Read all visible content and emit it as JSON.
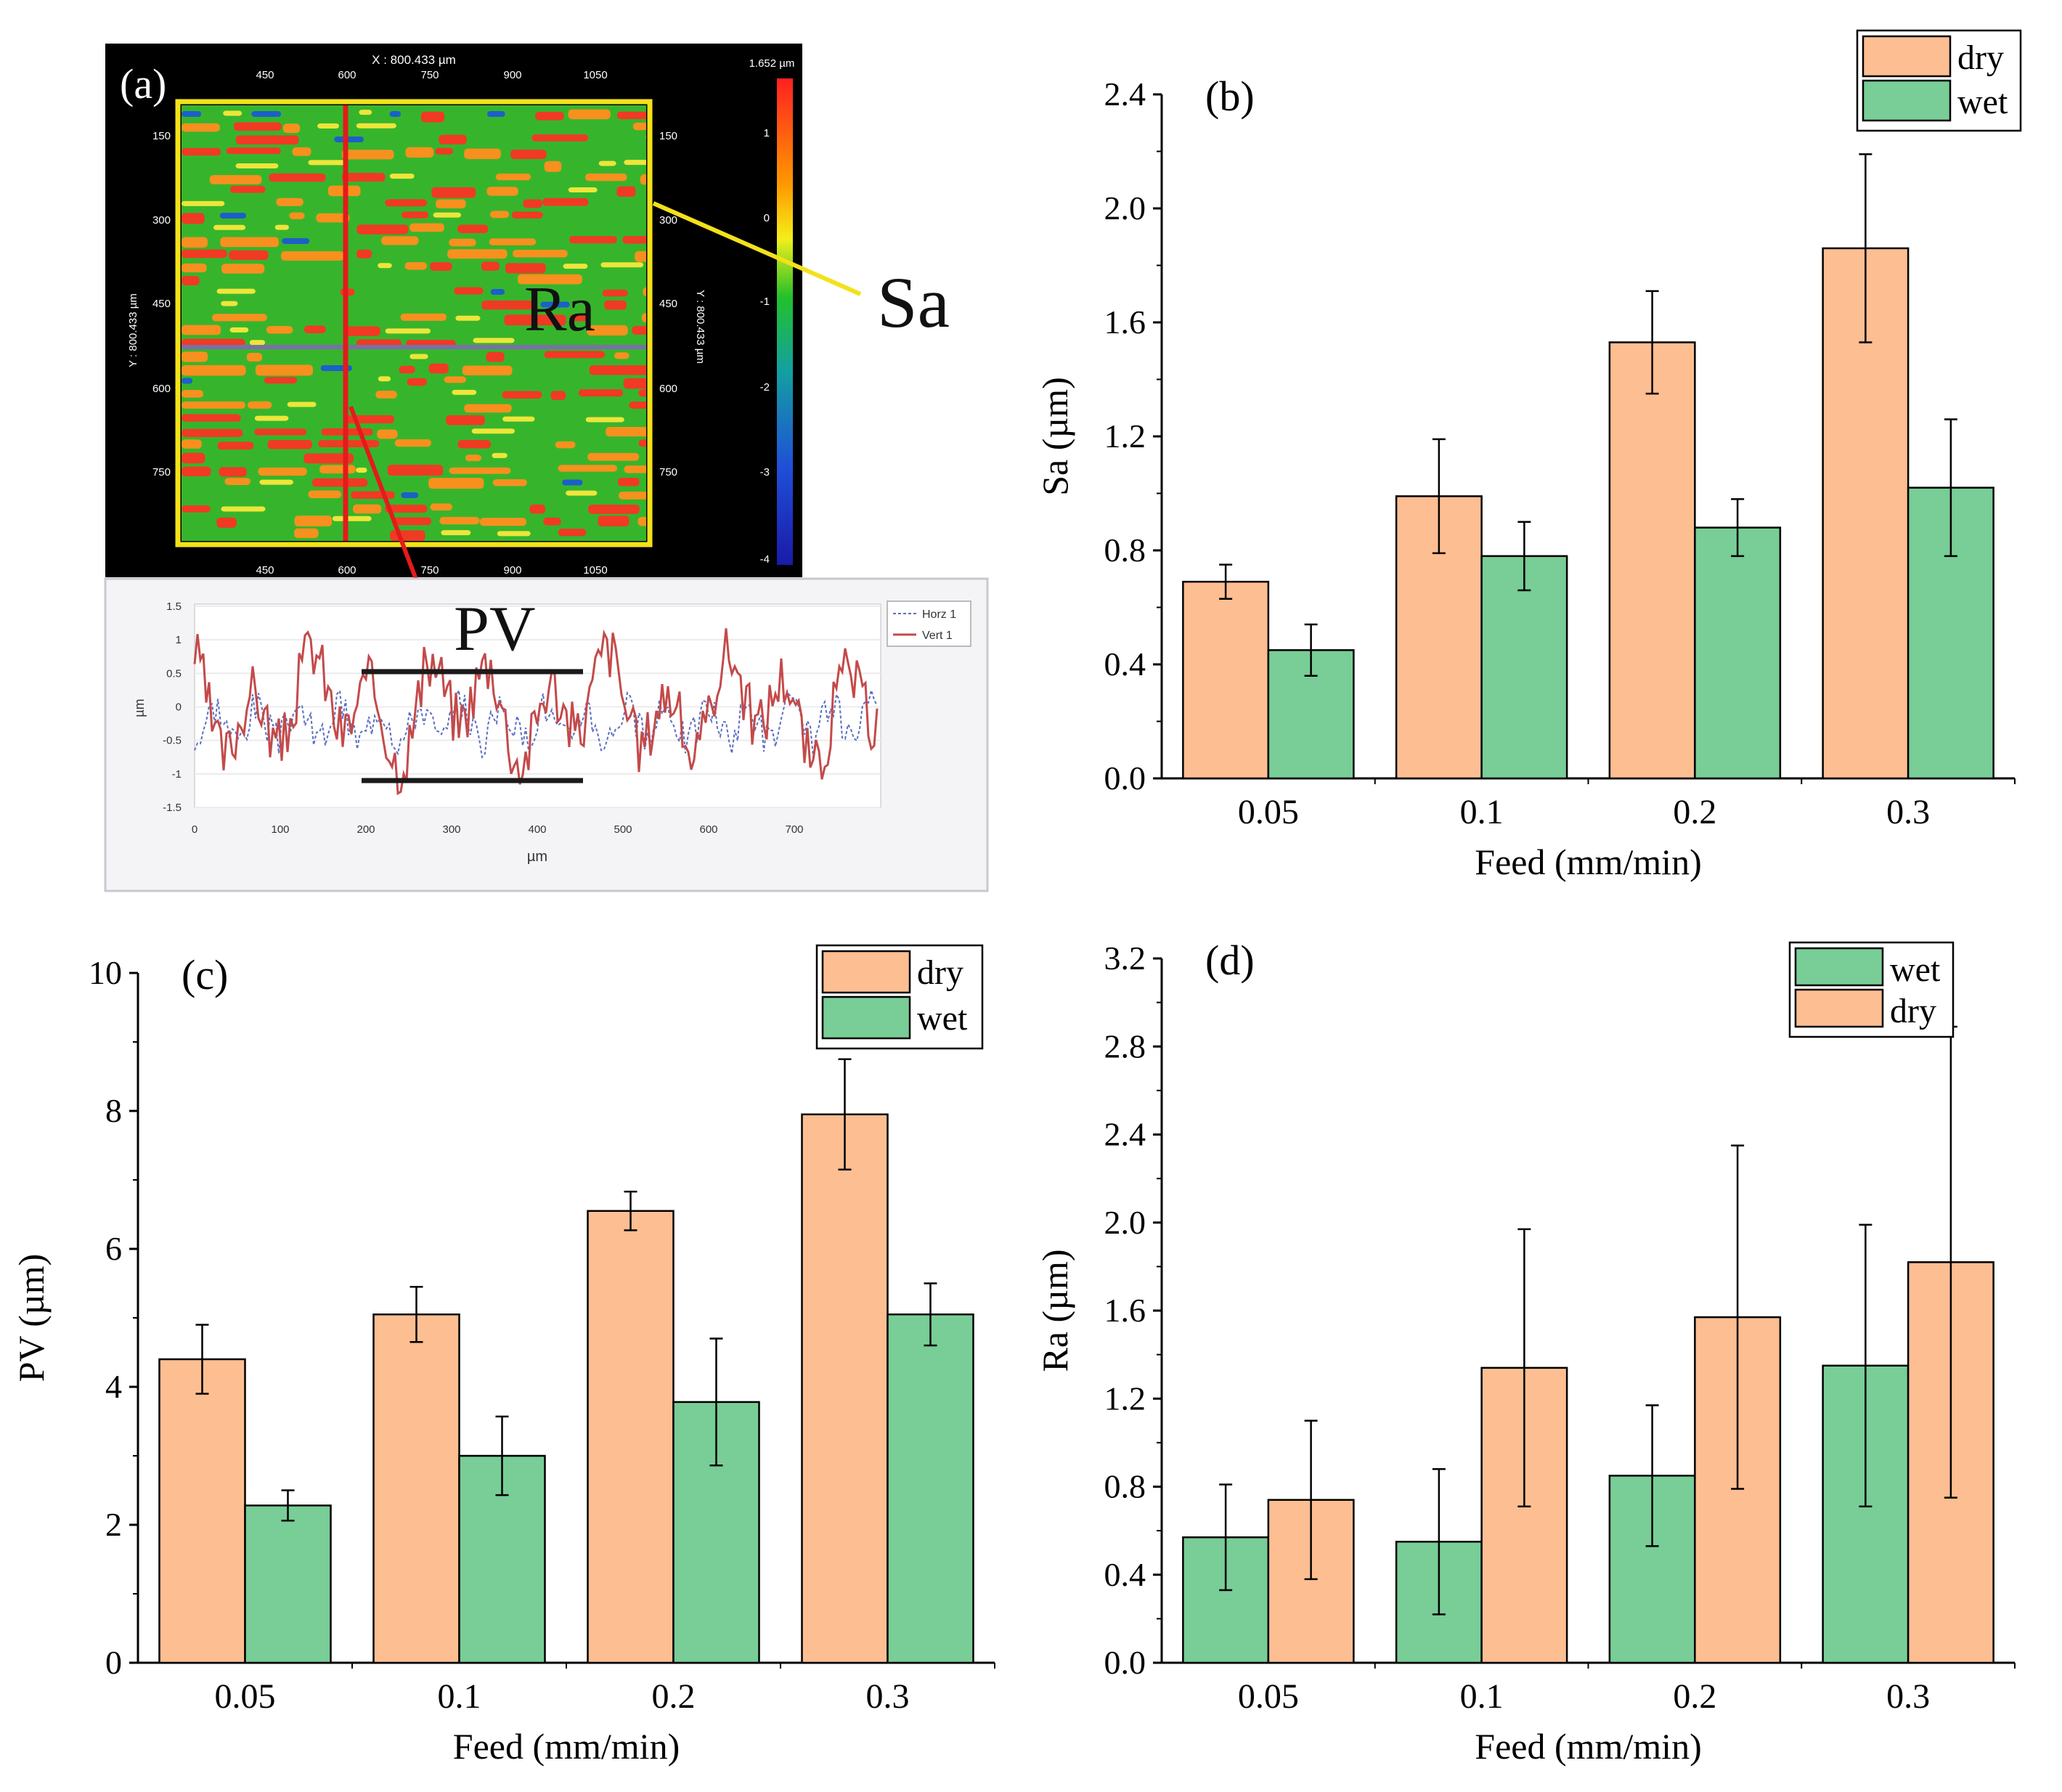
{
  "colors": {
    "dry": "#FDBE92",
    "wet": "#79CD96",
    "axis": "#000000",
    "line_red": "#E31B1B",
    "line_yellow": "#F3E11A",
    "line_dark": "#1A1A1A"
  },
  "panel_a": {
    "label": "(a)",
    "header": "X : 800.433 µm",
    "y_axis_label": "Y : 800.433 µm",
    "right_axis_label": "Y : 800.433 µm",
    "top_ticks": [
      "450",
      "600",
      "750",
      "900",
      "1050"
    ],
    "bottom_ticks": [
      "450",
      "600",
      "750",
      "900",
      "1050"
    ],
    "left_ticks": [
      "150",
      "300",
      "450",
      "600",
      "750"
    ],
    "right_ticks": [
      "150",
      "300",
      "450",
      "600",
      "750"
    ],
    "colorbar_top": "1.652 µm",
    "colorbar_ticks": [
      "1",
      "0",
      "-1",
      "-2",
      "-3",
      "-4"
    ],
    "callout_sa": "Sa",
    "callout_ra": "Ra",
    "callout_pv": "PV",
    "profile": {
      "y_ticks": [
        "1.5",
        "1",
        "0.5",
        "0",
        "-0.5",
        "-1",
        "-1.5"
      ],
      "x_ticks": [
        "0",
        "100",
        "200",
        "300",
        "400",
        "500",
        "600",
        "700"
      ],
      "ylabel": "µm",
      "xlabel": "µm",
      "legend": [
        "Horz 1",
        "Vert 1"
      ]
    }
  },
  "chart_data": [
    {
      "panel": "(b)",
      "type": "bar",
      "categories": [
        "0.05",
        "0.1",
        "0.2",
        "0.3"
      ],
      "series": [
        {
          "name": "dry",
          "values": [
            0.69,
            0.99,
            1.53,
            1.86
          ],
          "errors": [
            0.06,
            0.2,
            0.18,
            0.33
          ]
        },
        {
          "name": "wet",
          "values": [
            0.45,
            0.78,
            0.88,
            1.02
          ],
          "errors": [
            0.09,
            0.12,
            0.1,
            0.24
          ]
        }
      ],
      "xlabel": "Feed (mm/min)",
      "ylabel": "Sa (µm)",
      "ylim": [
        0,
        2.4
      ],
      "yticks": [
        "0.0",
        "0.4",
        "0.8",
        "1.2",
        "1.6",
        "2.0",
        "2.4"
      ],
      "legend": [
        "dry",
        "wet"
      ],
      "legend_position": "top-right"
    },
    {
      "panel": "(c)",
      "type": "bar",
      "categories": [
        "0.05",
        "0.1",
        "0.2",
        "0.3"
      ],
      "series": [
        {
          "name": "dry",
          "values": [
            4.4,
            5.05,
            6.55,
            7.95
          ],
          "errors": [
            0.5,
            0.4,
            0.28,
            0.8
          ]
        },
        {
          "name": "wet",
          "values": [
            2.28,
            3.0,
            3.78,
            5.05
          ],
          "errors": [
            0.22,
            0.57,
            0.92,
            0.45
          ]
        }
      ],
      "xlabel": "Feed (mm/min)",
      "ylabel": "PV (µm)",
      "ylim": [
        0,
        10
      ],
      "yticks": [
        "0",
        "2",
        "4",
        "6",
        "8",
        "10"
      ],
      "legend": [
        "dry",
        "wet"
      ],
      "legend_position": "top-right"
    },
    {
      "panel": "(d)",
      "type": "bar",
      "categories": [
        "0.05",
        "0.1",
        "0.2",
        "0.3"
      ],
      "series": [
        {
          "name": "wet",
          "values": [
            0.57,
            0.55,
            0.85,
            1.35
          ],
          "errors": [
            0.24,
            0.33,
            0.32,
            0.64
          ]
        },
        {
          "name": "dry",
          "values": [
            0.74,
            1.34,
            1.57,
            1.82
          ],
          "errors": [
            0.36,
            0.63,
            0.78,
            1.07
          ]
        }
      ],
      "xlabel": "Feed (mm/min)",
      "ylabel": "Ra (µm)",
      "ylim": [
        0,
        3.2
      ],
      "yticks": [
        "0.0",
        "0.4",
        "0.8",
        "1.2",
        "1.6",
        "2.0",
        "2.4",
        "2.8",
        "3.2"
      ],
      "legend": [
        "wet",
        "dry"
      ],
      "legend_position": "top-right"
    }
  ]
}
